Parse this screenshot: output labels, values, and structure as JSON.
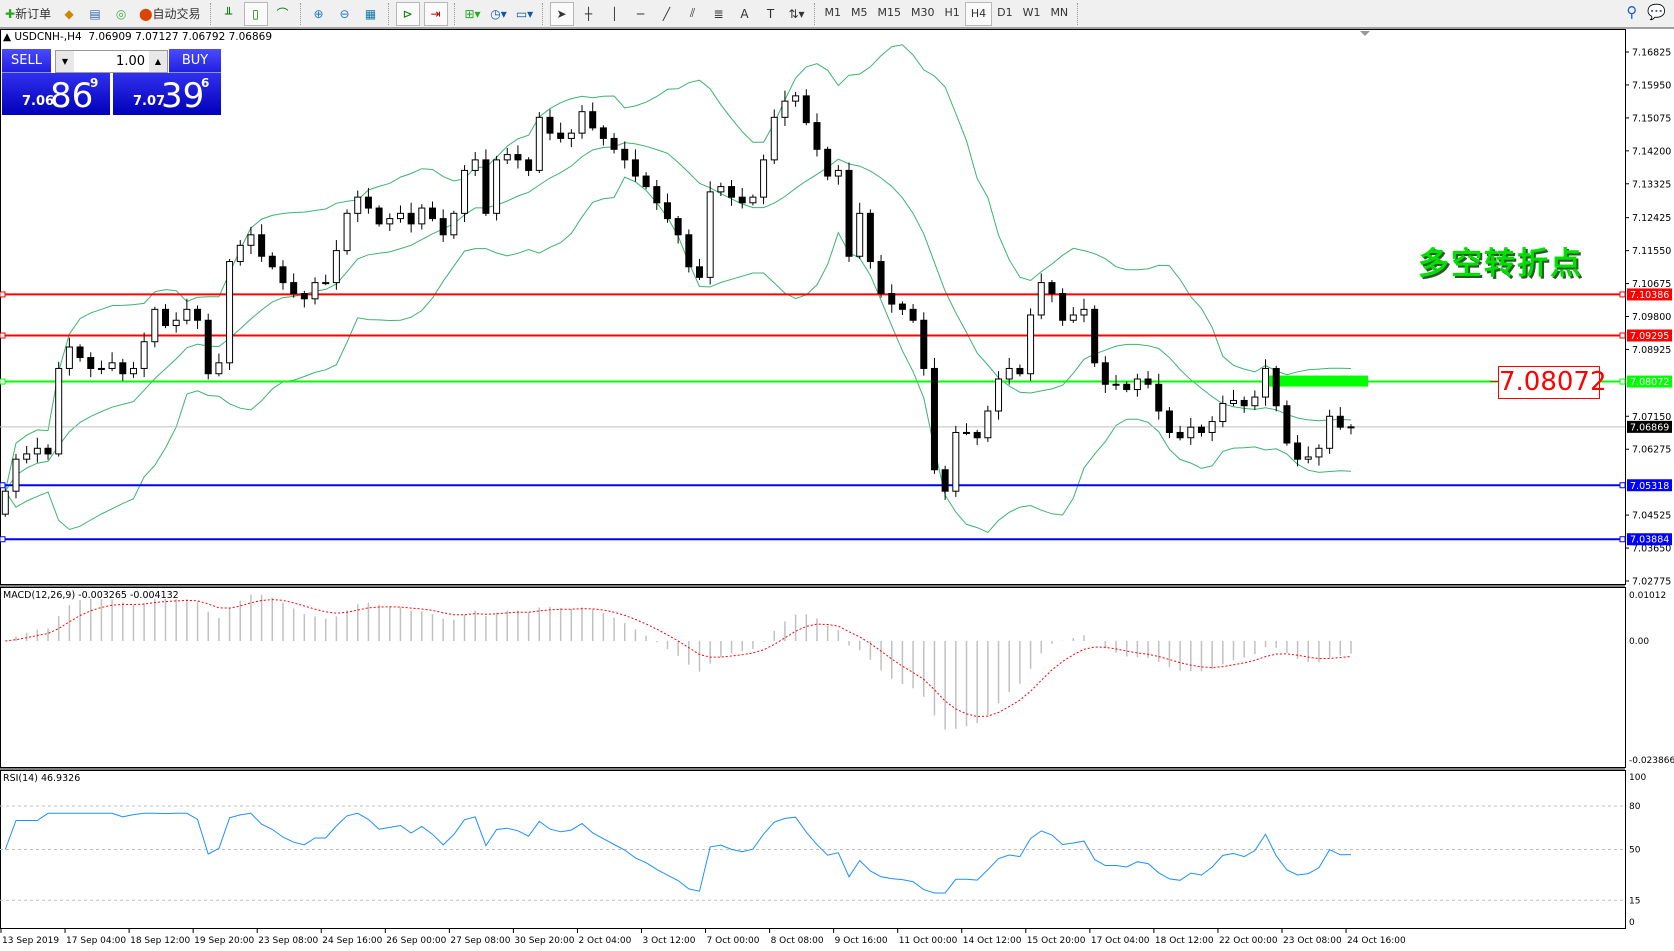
{
  "toolbar": {
    "new_order": "新订单",
    "auto_trading": "自动交易",
    "icons": [
      "new-order-icon",
      "market-watch-icon",
      "navigator-icon",
      "signals-icon",
      "auto-trading-icon",
      "bar-chart-icon",
      "candlestick-icon",
      "line-chart-icon",
      "zoom-in-icon",
      "zoom-out-icon",
      "tile-windows-icon",
      "chart-shift-icon",
      "autoscroll-icon",
      "indicators-icon",
      "periods-icon",
      "templates-icon",
      "cursor-icon",
      "crosshair-icon",
      "vertical-line-icon",
      "horizontal-line-icon",
      "trendline-icon",
      "fibonacci-icon",
      "fibo-fan-icon",
      "text-icon",
      "text-label-icon",
      "arrows-icon"
    ],
    "text_tool": "A",
    "timeframes": [
      "M1",
      "M5",
      "M15",
      "M30",
      "H1",
      "H4",
      "D1",
      "W1",
      "MN"
    ],
    "active_timeframe": "H4"
  },
  "chart": {
    "header": "USDCNH-,H4  7.06909 7.07127 7.06792 7.06869",
    "current_price": "7.06869",
    "price_ticks": [
      "7.16825",
      "7.15950",
      "7.15075",
      "7.14200",
      "7.13325",
      "7.12425",
      "7.11550",
      "7.10675",
      "7.09800",
      "7.08925",
      "7.07150",
      "7.06275",
      "7.04525",
      "7.03650",
      "7.02775"
    ],
    "levels": [
      {
        "price": "7.10386",
        "color": "#ff0000"
      },
      {
        "price": "7.09295",
        "color": "#ff0000"
      },
      {
        "price": "7.08072",
        "color": "#00ff00"
      },
      {
        "price": "7.05318",
        "color": "#0000ff"
      },
      {
        "price": "7.03884",
        "color": "#0000ff"
      }
    ],
    "annotation_text": "多空转折点",
    "level_box_text": "7.08072",
    "colors": {
      "bollinger": "#3cb371",
      "bull_body": "#ffffff",
      "bear_body": "#000000",
      "current_line": "#c0c0c0",
      "zone": "#00ff00"
    }
  },
  "trade_panel": {
    "sell_label": "SELL",
    "buy_label": "BUY",
    "lot": "1.00",
    "sell_prefix": "7.06",
    "sell_big": "86",
    "sell_sup": "9",
    "buy_prefix": "7.07",
    "buy_big": "39",
    "buy_sup": "6"
  },
  "macd": {
    "label": "MACD(12,26,9) -0.003265 -0.004132",
    "ticks": [
      "0.01012",
      "0.00",
      "-0.023866"
    ],
    "colors": {
      "histogram": "#c0c0c0",
      "signal": "#ff0000"
    }
  },
  "rsi": {
    "label": "RSI(14) 46.9326",
    "ticks": [
      "100",
      "80",
      "50",
      "15",
      "0"
    ],
    "color": "#1e90ff"
  },
  "time_axis": [
    "13 Sep 2019",
    "17 Sep 04:00",
    "18 Sep 12:00",
    "19 Sep 20:00",
    "23 Sep 08:00",
    "24 Sep 16:00",
    "26 Sep 00:00",
    "27 Sep 08:00",
    "30 Sep 20:00",
    "2 Oct 04:00",
    "3 Oct 12:00",
    "7 Oct 00:00",
    "8 Oct 08:00",
    "9 Oct 16:00",
    "11 Oct 00:00",
    "14 Oct 12:00",
    "15 Oct 20:00",
    "17 Oct 04:00",
    "18 Oct 12:00",
    "22 Oct 00:00",
    "23 Oct 08:00",
    "24 Oct 16:00"
  ],
  "chart_data": {
    "type": "candlestick",
    "symbol": "USDCNH-",
    "timeframe": "H4",
    "ylim": [
      7.02775,
      7.16825
    ],
    "closes": [
      7.0516,
      7.0601,
      7.0615,
      7.063,
      7.0615,
      7.0842,
      7.0899,
      7.0871,
      7.0842,
      7.0842,
      7.0857,
      7.0828,
      7.0842,
      7.0913,
      7.0999,
      7.0956,
      7.097,
      7.0999,
      7.097,
      7.0828,
      7.0857,
      7.1126,
      7.1169,
      7.1197,
      7.114,
      7.1112,
      7.107,
      7.1041,
      7.1027,
      7.107,
      7.107,
      7.1155,
      7.1254,
      7.1297,
      7.1268,
      7.1226,
      7.124,
      7.1254,
      7.1226,
      7.1268,
      7.124,
      7.1197,
      7.1254,
      7.1368,
      7.1396,
      7.1254,
      7.1396,
      7.141,
      7.1396,
      7.1368,
      7.1509,
      7.1467,
      7.1453,
      7.1467,
      7.1524,
      7.1481,
      7.1453,
      7.1424,
      7.1396,
      7.1353,
      7.1325,
      7.1282,
      7.124,
      7.1197,
      7.1112,
      7.1084,
      7.1311,
      7.1325,
      7.1297,
      7.1282,
      7.1297,
      7.1396,
      7.1509,
      7.1552,
      7.1566,
      7.1495,
      7.1424,
      7.1353,
      7.1368,
      7.114,
      7.1254,
      7.1126,
      7.1041,
      7.1013,
      7.0999,
      7.097,
      7.0842,
      7.0573,
      7.0516,
      7.0672,
      7.0672,
      7.0658,
      7.0729,
      7.0814,
      7.0842,
      7.0828,
      7.0984,
      7.107,
      7.1041,
      7.097,
      7.0984,
      7.0999,
      7.0857,
      7.08,
      7.08,
      7.0786,
      7.0814,
      7.08,
      7.0729,
      7.0672,
      7.0658,
      7.0686,
      7.0672,
      7.0701,
      7.0749,
      7.0757,
      7.0743,
      7.0766,
      7.0842,
      7.0743,
      7.0644,
      7.0601,
      7.0607,
      7.063,
      7.0715,
      7.0686,
      7.06869
    ]
  }
}
